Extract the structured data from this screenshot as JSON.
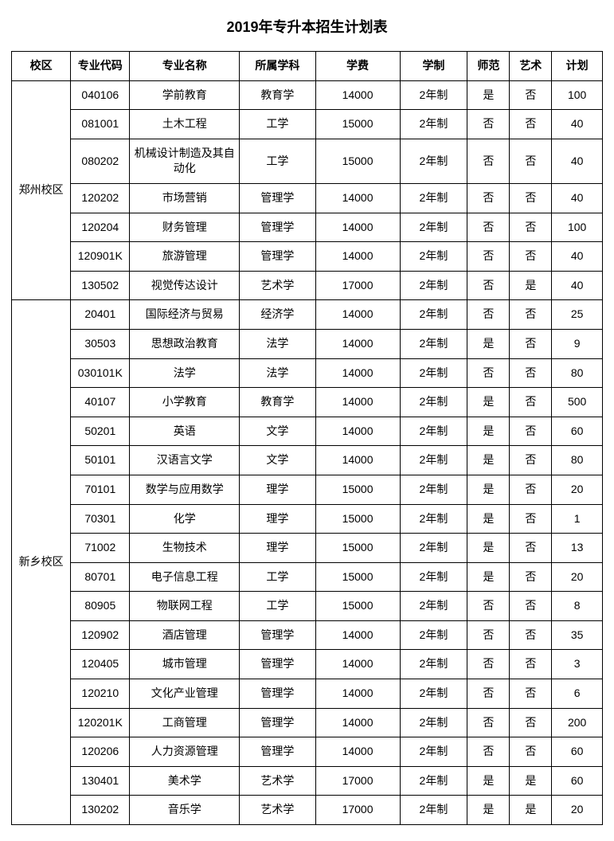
{
  "title": "2019年专升本招生计划表",
  "columns": [
    "校区",
    "专业代码",
    "专业名称",
    "所属学科",
    "学费",
    "学制",
    "师范",
    "艺术",
    "计划"
  ],
  "campuses": [
    {
      "name": "郑州校区",
      "rows": [
        {
          "code": "040106",
          "major": "学前教育",
          "subject": "教育学",
          "fee": "14000",
          "dur": "2年制",
          "shifan": "是",
          "art": "否",
          "plan": "100"
        },
        {
          "code": "081001",
          "major": "土木工程",
          "subject": "工学",
          "fee": "15000",
          "dur": "2年制",
          "shifan": "否",
          "art": "否",
          "plan": "40"
        },
        {
          "code": "080202",
          "major": "机械设计制造及其自动化",
          "subject": "工学",
          "fee": "15000",
          "dur": "2年制",
          "shifan": "否",
          "art": "否",
          "plan": "40"
        },
        {
          "code": "120202",
          "major": "市场营销",
          "subject": "管理学",
          "fee": "14000",
          "dur": "2年制",
          "shifan": "否",
          "art": "否",
          "plan": "40"
        },
        {
          "code": "120204",
          "major": "财务管理",
          "subject": "管理学",
          "fee": "14000",
          "dur": "2年制",
          "shifan": "否",
          "art": "否",
          "plan": "100"
        },
        {
          "code": "120901K",
          "major": "旅游管理",
          "subject": "管理学",
          "fee": "14000",
          "dur": "2年制",
          "shifan": "否",
          "art": "否",
          "plan": "40"
        },
        {
          "code": "130502",
          "major": "视觉传达设计",
          "subject": "艺术学",
          "fee": "17000",
          "dur": "2年制",
          "shifan": "否",
          "art": "是",
          "plan": "40"
        }
      ]
    },
    {
      "name": "新乡校区",
      "rows": [
        {
          "code": "20401",
          "major": "国际经济与贸易",
          "subject": "经济学",
          "fee": "14000",
          "dur": "2年制",
          "shifan": "否",
          "art": "否",
          "plan": "25"
        },
        {
          "code": "30503",
          "major": "思想政治教育",
          "subject": "法学",
          "fee": "14000",
          "dur": "2年制",
          "shifan": "是",
          "art": "否",
          "plan": "9"
        },
        {
          "code": "030101K",
          "major": "法学",
          "subject": "法学",
          "fee": "14000",
          "dur": "2年制",
          "shifan": "否",
          "art": "否",
          "plan": "80"
        },
        {
          "code": "40107",
          "major": "小学教育",
          "subject": "教育学",
          "fee": "14000",
          "dur": "2年制",
          "shifan": "是",
          "art": "否",
          "plan": "500"
        },
        {
          "code": "50201",
          "major": "英语",
          "subject": "文学",
          "fee": "14000",
          "dur": "2年制",
          "shifan": "是",
          "art": "否",
          "plan": "60"
        },
        {
          "code": "50101",
          "major": "汉语言文学",
          "subject": "文学",
          "fee": "14000",
          "dur": "2年制",
          "shifan": "是",
          "art": "否",
          "plan": "80"
        },
        {
          "code": "70101",
          "major": "数学与应用数学",
          "subject": "理学",
          "fee": "15000",
          "dur": "2年制",
          "shifan": "是",
          "art": "否",
          "plan": "20"
        },
        {
          "code": "70301",
          "major": "化学",
          "subject": "理学",
          "fee": "15000",
          "dur": "2年制",
          "shifan": "是",
          "art": "否",
          "plan": "1"
        },
        {
          "code": "71002",
          "major": "生物技术",
          "subject": "理学",
          "fee": "15000",
          "dur": "2年制",
          "shifan": "是",
          "art": "否",
          "plan": "13"
        },
        {
          "code": "80701",
          "major": "电子信息工程",
          "subject": "工学",
          "fee": "15000",
          "dur": "2年制",
          "shifan": "是",
          "art": "否",
          "plan": "20"
        },
        {
          "code": "80905",
          "major": "物联网工程",
          "subject": "工学",
          "fee": "15000",
          "dur": "2年制",
          "shifan": "否",
          "art": "否",
          "plan": "8"
        },
        {
          "code": "120902",
          "major": "酒店管理",
          "subject": "管理学",
          "fee": "14000",
          "dur": "2年制",
          "shifan": "否",
          "art": "否",
          "plan": "35"
        },
        {
          "code": "120405",
          "major": "城市管理",
          "subject": "管理学",
          "fee": "14000",
          "dur": "2年制",
          "shifan": "否",
          "art": "否",
          "plan": "3"
        },
        {
          "code": "120210",
          "major": "文化产业管理",
          "subject": "管理学",
          "fee": "14000",
          "dur": "2年制",
          "shifan": "否",
          "art": "否",
          "plan": "6"
        },
        {
          "code": "120201K",
          "major": "工商管理",
          "subject": "管理学",
          "fee": "14000",
          "dur": "2年制",
          "shifan": "否",
          "art": "否",
          "plan": "200"
        },
        {
          "code": "120206",
          "major": "人力资源管理",
          "subject": "管理学",
          "fee": "14000",
          "dur": "2年制",
          "shifan": "否",
          "art": "否",
          "plan": "60"
        },
        {
          "code": "130401",
          "major": "美术学",
          "subject": "艺术学",
          "fee": "17000",
          "dur": "2年制",
          "shifan": "是",
          "art": "是",
          "plan": "60"
        },
        {
          "code": "130202",
          "major": "音乐学",
          "subject": "艺术学",
          "fee": "17000",
          "dur": "2年制",
          "shifan": "是",
          "art": "是",
          "plan": "20"
        }
      ]
    }
  ]
}
